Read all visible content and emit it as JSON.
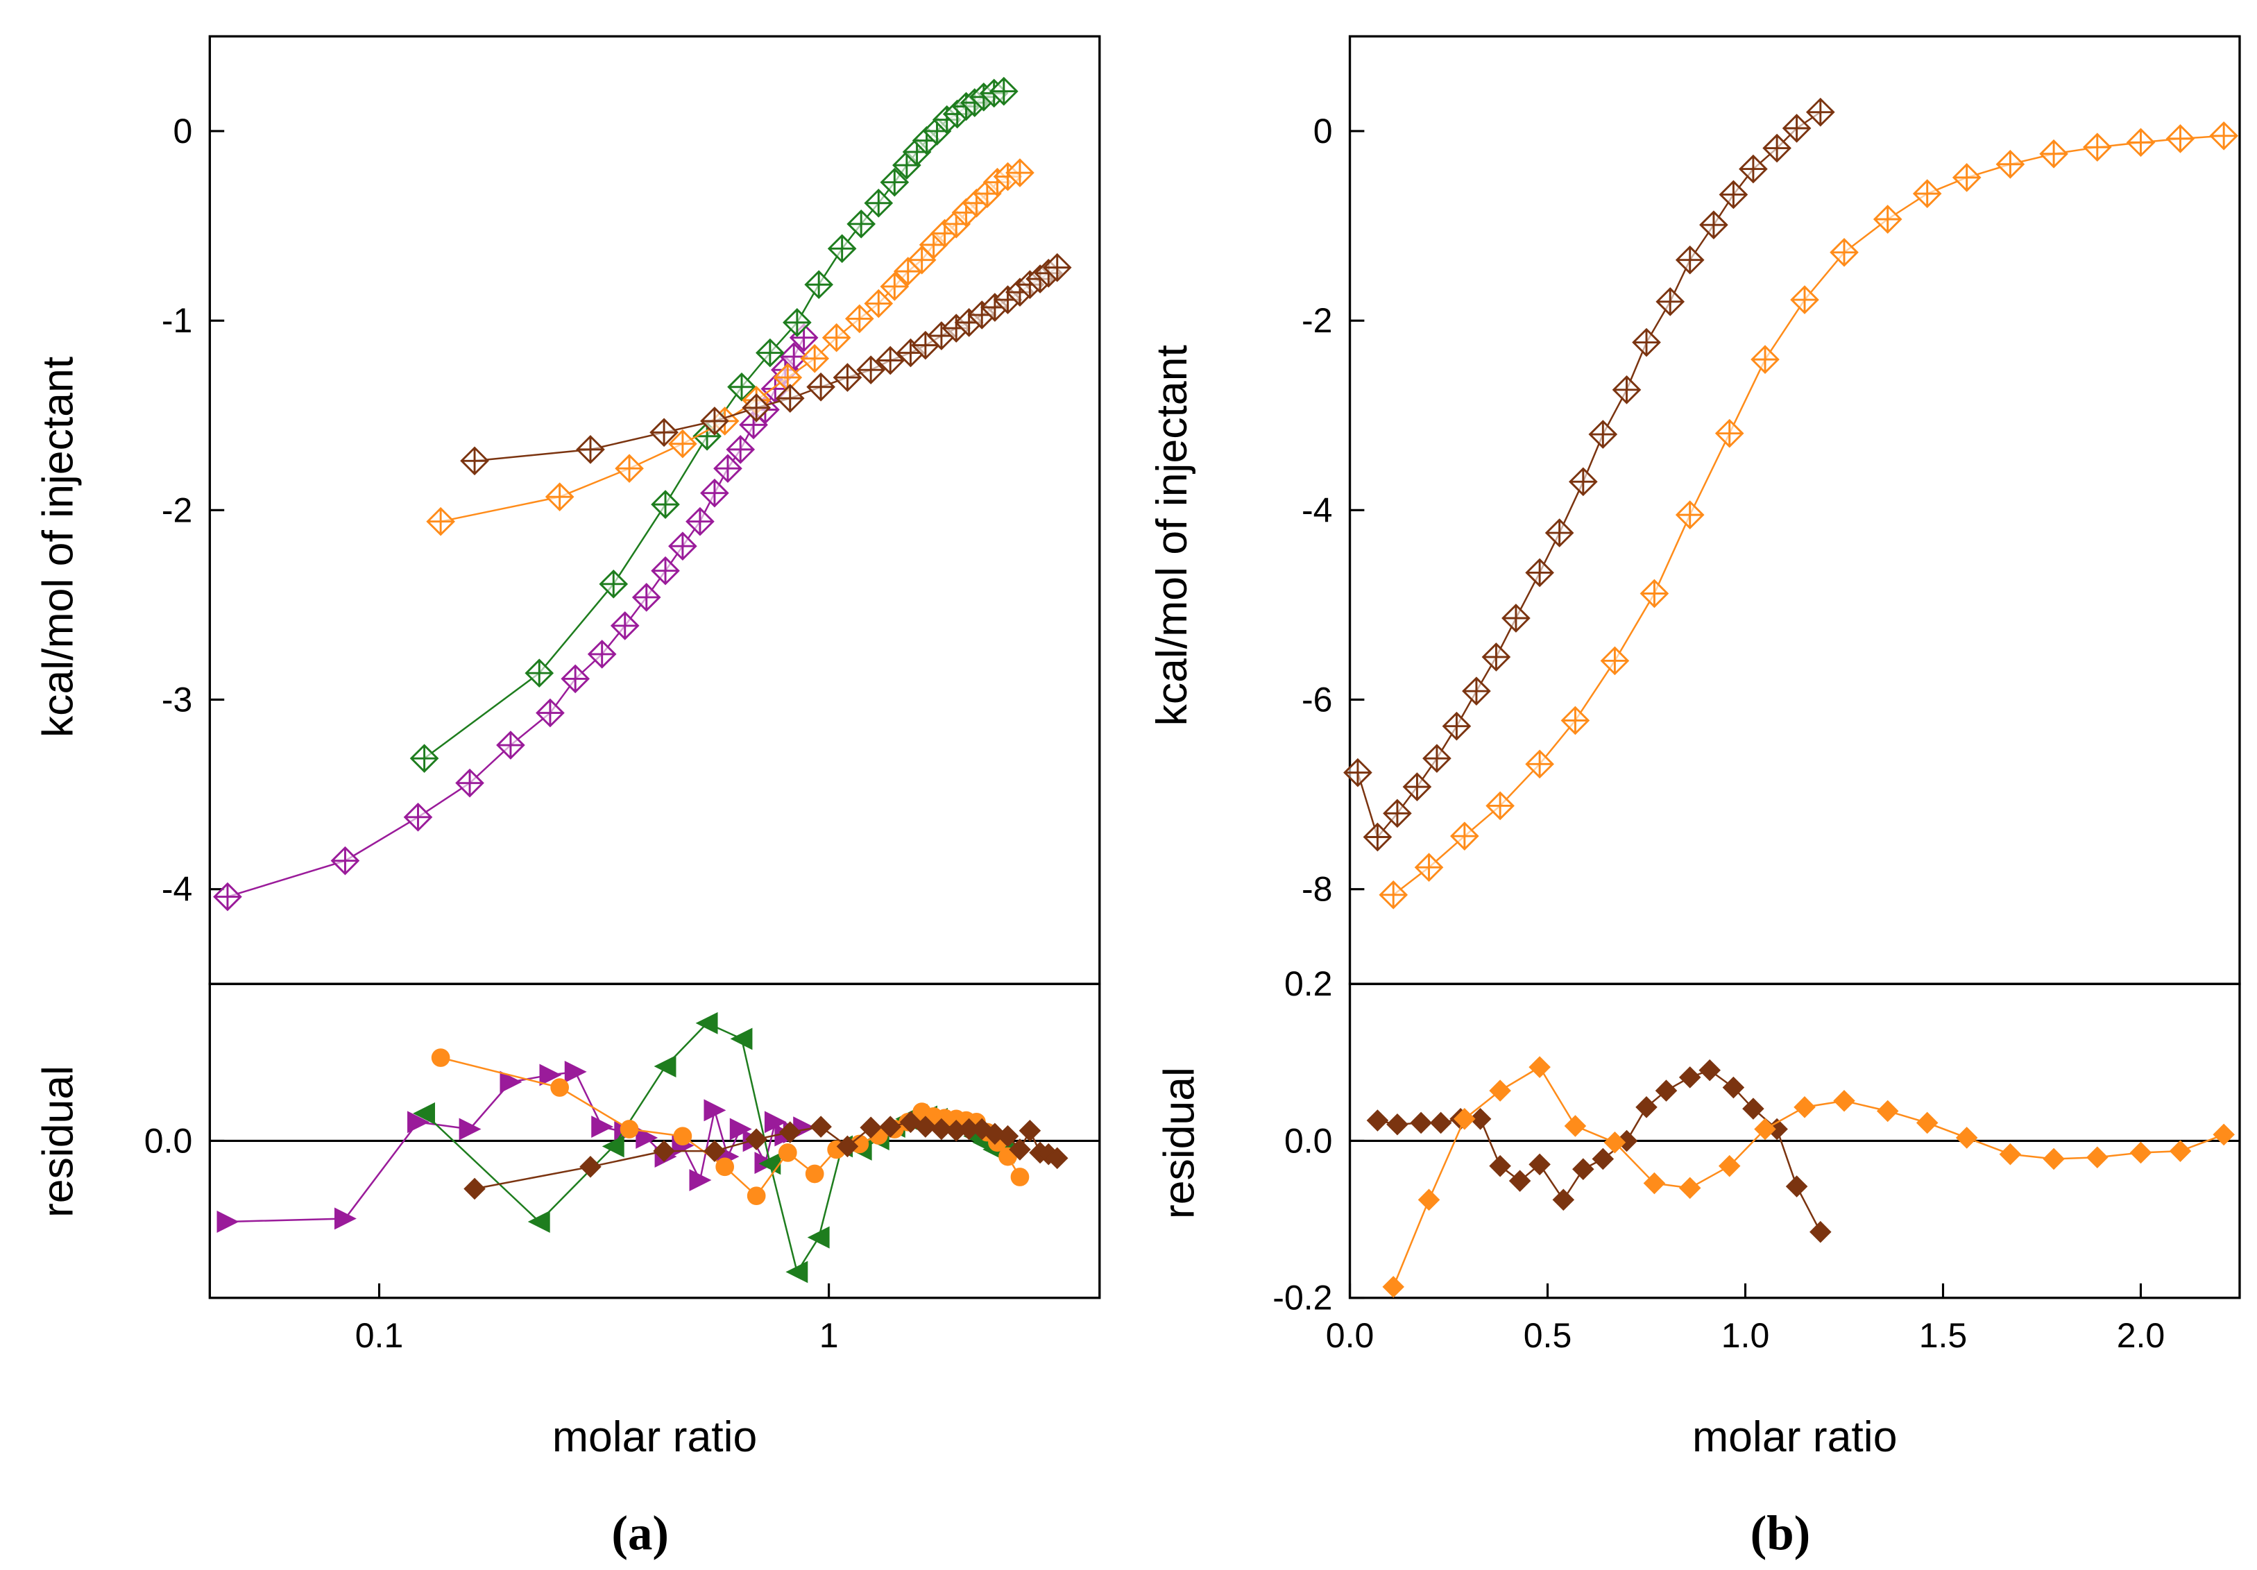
{
  "chart_data": [
    {
      "type": "line",
      "ylabel": "kcal/mol of injectant",
      "caption": "(a)",
      "xscale": "log",
      "xlim": [
        0.042,
        4
      ],
      "ylim": [
        -4.5,
        0.5
      ],
      "yticks": [
        0,
        -1,
        -2,
        -3,
        -4
      ],
      "marker": "diamond-cross",
      "series": [
        {
          "color": "#9a1b9a",
          "x": [
            0.046,
            0.084,
            0.122,
            0.159,
            0.196,
            0.24,
            0.273,
            0.313,
            0.352,
            0.393,
            0.433,
            0.473,
            0.517,
            0.557,
            0.596,
            0.636,
            0.68,
            0.722,
            0.76,
            0.8,
            0.836,
            0.88
          ],
          "values": [
            -4.04,
            -3.85,
            -3.62,
            -3.44,
            -3.24,
            -3.07,
            -2.89,
            -2.76,
            -2.61,
            -2.46,
            -2.32,
            -2.19,
            -2.06,
            -1.91,
            -1.78,
            -1.68,
            -1.55,
            -1.47,
            -1.36,
            -1.26,
            -1.19,
            -1.09
          ]
        },
        {
          "color": "#1e7d1e",
          "x": [
            0.126,
            0.227,
            0.332,
            0.433,
            0.536,
            0.64,
            0.74,
            0.85,
            0.95,
            1.07,
            1.18,
            1.29,
            1.4,
            1.49,
            1.57,
            1.65,
            1.74,
            1.83,
            1.93,
            2.02,
            2.11,
            2.21,
            2.33,
            2.45
          ],
          "values": [
            -3.31,
            -2.86,
            -2.39,
            -1.97,
            -1.61,
            -1.35,
            -1.17,
            -1.01,
            -0.81,
            -0.62,
            -0.49,
            -0.38,
            -0.27,
            -0.18,
            -0.11,
            -0.05,
            0,
            0.06,
            0.09,
            0.13,
            0.15,
            0.18,
            0.2,
            0.21
          ]
        },
        {
          "color": "#ff8c1a",
          "x": [
            0.137,
            0.252,
            0.36,
            0.473,
            0.587,
            0.69,
            0.81,
            0.93,
            1.04,
            1.17,
            1.29,
            1.4,
            1.5,
            1.61,
            1.71,
            1.81,
            1.92,
            2.02,
            2.13,
            2.25,
            2.37,
            2.5,
            2.66
          ],
          "values": [
            -2.06,
            -1.93,
            -1.78,
            -1.65,
            -1.53,
            -1.42,
            -1.3,
            -1.2,
            -1.09,
            -0.99,
            -0.91,
            -0.82,
            -0.74,
            -0.68,
            -0.6,
            -0.54,
            -0.49,
            -0.43,
            -0.38,
            -0.33,
            -0.27,
            -0.24,
            -0.22
          ]
        },
        {
          "color": "#7b3410",
          "x": [
            0.163,
            0.295,
            0.43,
            0.557,
            0.69,
            0.82,
            0.96,
            1.1,
            1.24,
            1.37,
            1.52,
            1.64,
            1.78,
            1.92,
            2.05,
            2.19,
            2.34,
            2.5,
            2.66,
            2.8,
            2.95,
            3.08,
            3.22
          ],
          "values": [
            -1.74,
            -1.68,
            -1.59,
            -1.53,
            -1.46,
            -1.41,
            -1.35,
            -1.3,
            -1.26,
            -1.21,
            -1.17,
            -1.13,
            -1.08,
            -1.04,
            -1.01,
            -0.97,
            -0.93,
            -0.89,
            -0.85,
            -0.81,
            -0.78,
            -0.75,
            -0.72
          ]
        }
      ]
    },
    {
      "type": "line",
      "ylabel": "residual",
      "xlabel": "molar ratio",
      "xscale": "log",
      "xlim": [
        0.042,
        4
      ],
      "xticks": [
        0.1,
        1
      ],
      "ylim": [
        -0.2,
        0.2
      ],
      "yticks": [
        {
          "value": 0,
          "label": "0.0"
        }
      ],
      "reference_line": 0,
      "series": [
        {
          "color": "#9a1b9a",
          "marker": "triangle-right",
          "x": [
            0.046,
            0.084,
            0.122,
            0.159,
            0.196,
            0.24,
            0.273,
            0.313,
            0.352,
            0.393,
            0.433,
            0.473,
            0.517,
            0.557,
            0.596,
            0.636,
            0.68,
            0.722,
            0.76,
            0.8,
            0.836,
            0.88
          ],
          "values": [
            -0.103,
            -0.099,
            0.024,
            0.015,
            0.075,
            0.084,
            0.088,
            0.018,
            0.011,
            0.004,
            -0.02,
            -0.006,
            -0.05,
            0.039,
            -0.02,
            0.015,
            0,
            -0.028,
            0.024,
            0.007,
            0.011,
            0.017
          ]
        },
        {
          "color": "#1e7d1e",
          "marker": "triangle-left",
          "x": [
            0.126,
            0.227,
            0.332,
            0.433,
            0.536,
            0.64,
            0.74,
            0.85,
            0.95,
            1.07,
            1.18,
            1.29,
            1.4,
            1.49,
            1.57,
            1.65,
            1.74,
            1.83,
            1.93,
            2.02,
            2.11,
            2.21,
            2.33,
            2.45
          ],
          "values": [
            0.035,
            -0.103,
            -0.007,
            0.095,
            0.15,
            0.13,
            -0.029,
            -0.167,
            -0.123,
            -0.007,
            -0.011,
            0.002,
            0.018,
            0.028,
            0.033,
            0.031,
            0.028,
            0.024,
            0.02,
            0.015,
            0.006,
            -0.002,
            -0.011,
            -0.015
          ]
        },
        {
          "color": "#ff8c1a",
          "marker": "circle",
          "x": [
            0.137,
            0.252,
            0.36,
            0.473,
            0.587,
            0.69,
            0.81,
            0.93,
            1.04,
            1.17,
            1.29,
            1.4,
            1.5,
            1.61,
            1.71,
            1.81,
            1.92,
            2.02,
            2.13,
            2.25,
            2.37,
            2.5,
            2.66
          ],
          "values": [
            0.106,
            0.068,
            0.015,
            0.006,
            -0.033,
            -0.07,
            -0.015,
            -0.042,
            -0.011,
            -0.004,
            0.007,
            0.015,
            0.024,
            0.037,
            0.031,
            0.029,
            0.028,
            0.026,
            0.024,
            0.011,
            -0.002,
            -0.02,
            -0.046
          ]
        },
        {
          "color": "#7b3410",
          "marker": "diamond",
          "x": [
            0.163,
            0.295,
            0.43,
            0.557,
            0.69,
            0.82,
            0.96,
            1.1,
            1.24,
            1.37,
            1.52,
            1.64,
            1.78,
            1.92,
            2.05,
            2.19,
            2.34,
            2.5,
            2.66,
            2.8,
            2.95,
            3.08,
            3.22
          ],
          "values": [
            -0.061,
            -0.033,
            -0.013,
            -0.013,
            0.002,
            0.011,
            0.018,
            -0.007,
            0.017,
            0.018,
            0.024,
            0.018,
            0.015,
            0.013,
            0.015,
            0.015,
            0.009,
            0.006,
            -0.011,
            0.013,
            -0.015,
            -0.017,
            -0.022
          ]
        }
      ]
    },
    {
      "type": "line",
      "ylabel": "kcal/mol of injectant",
      "caption": "(b)",
      "xlim": [
        0,
        2.25
      ],
      "ylim": [
        -9,
        1
      ],
      "yticks": [
        0,
        -2,
        -4,
        -6,
        -8
      ],
      "marker": "diamond-cross",
      "series": [
        {
          "color": "#7b3410",
          "x": [
            0.02,
            0.07,
            0.12,
            0.17,
            0.22,
            0.27,
            0.32,
            0.37,
            0.42,
            0.48,
            0.53,
            0.59,
            0.64,
            0.7,
            0.75,
            0.81,
            0.86,
            0.92,
            0.97,
            1.02,
            1.08,
            1.13,
            1.19
          ],
          "values": [
            -6.77,
            -7.45,
            -7.2,
            -6.92,
            -6.62,
            -6.28,
            -5.91,
            -5.55,
            -5.14,
            -4.66,
            -4.24,
            -3.7,
            -3.2,
            -2.73,
            -2.23,
            -1.8,
            -1.36,
            -0.99,
            -0.67,
            -0.4,
            -0.18,
            0.03,
            0.2
          ]
        },
        {
          "color": "#ff8c1a",
          "x": [
            0.11,
            0.2,
            0.29,
            0.38,
            0.48,
            0.57,
            0.67,
            0.77,
            0.86,
            0.96,
            1.05,
            1.15,
            1.25,
            1.36,
            1.46,
            1.56,
            1.67,
            1.78,
            1.89,
            2.0,
            2.1,
            2.21
          ],
          "values": [
            -8.06,
            -7.77,
            -7.44,
            -7.12,
            -6.68,
            -6.22,
            -5.59,
            -4.88,
            -4.05,
            -3.19,
            -2.41,
            -1.78,
            -1.28,
            -0.93,
            -0.66,
            -0.49,
            -0.35,
            -0.24,
            -0.17,
            -0.12,
            -0.08,
            -0.05
          ]
        }
      ]
    },
    {
      "type": "line",
      "ylabel": "residual",
      "xlabel": "molar ratio",
      "xlim": [
        0,
        2.25
      ],
      "xticks": [
        {
          "value": 0,
          "label": "0.0"
        },
        0.5,
        {
          "value": 1,
          "label": "1.0"
        },
        1.5,
        {
          "value": 2,
          "label": "2.0"
        }
      ],
      "ylim": [
        -0.2,
        0.2
      ],
      "yticks": [
        0.2,
        {
          "value": 0,
          "label": "0.0"
        },
        -0.2
      ],
      "reference_line": 0,
      "series": [
        {
          "color": "#7b3410",
          "marker": "diamond",
          "x": [
            0.07,
            0.12,
            0.18,
            0.23,
            0.28,
            0.33,
            0.38,
            0.43,
            0.48,
            0.54,
            0.59,
            0.64,
            0.7,
            0.75,
            0.8,
            0.86,
            0.91,
            0.97,
            1.02,
            1.08,
            1.13,
            1.19
          ],
          "values": [
            0.026,
            0.021,
            0.023,
            0.023,
            0.028,
            0.028,
            -0.032,
            -0.051,
            -0.03,
            -0.075,
            -0.036,
            -0.023,
            0.0,
            0.043,
            0.064,
            0.081,
            0.09,
            0.068,
            0.041,
            0.015,
            -0.058,
            -0.116
          ]
        },
        {
          "color": "#ff8c1a",
          "marker": "diamond",
          "x": [
            0.11,
            0.2,
            0.29,
            0.38,
            0.48,
            0.57,
            0.67,
            0.77,
            0.86,
            0.96,
            1.05,
            1.15,
            1.25,
            1.36,
            1.46,
            1.56,
            1.67,
            1.78,
            1.89,
            2.0,
            2.1,
            2.21
          ],
          "values": [
            -0.186,
            -0.075,
            0.028,
            0.064,
            0.094,
            0.019,
            -0.002,
            -0.054,
            -0.06,
            -0.032,
            0.015,
            0.043,
            0.051,
            0.038,
            0.023,
            0.004,
            -0.017,
            -0.023,
            -0.021,
            -0.015,
            -0.013,
            0.008
          ]
        }
      ]
    }
  ]
}
